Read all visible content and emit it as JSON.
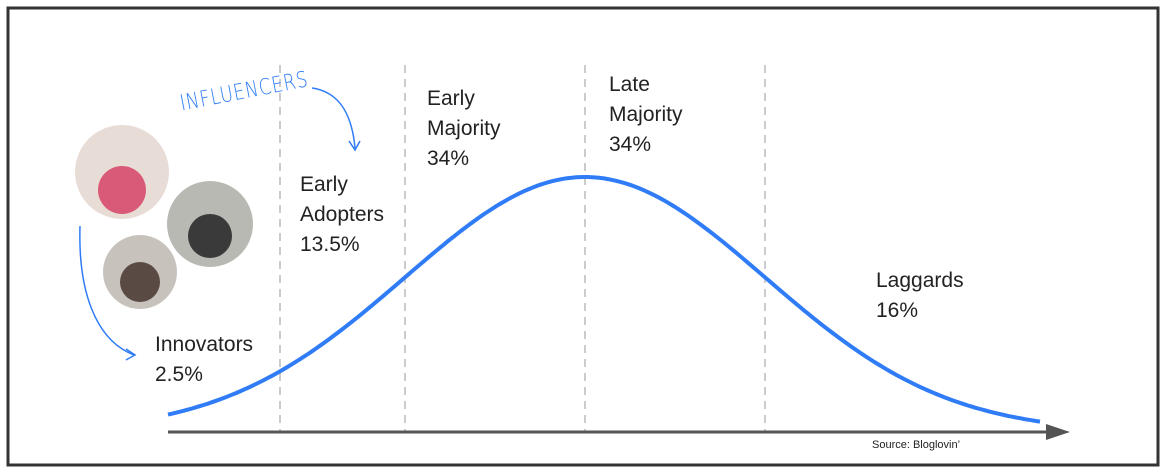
{
  "annotation": "INFLUENCERS",
  "segments": [
    {
      "name": "Innovators",
      "share": "2.5%"
    },
    {
      "name": "Early Adopters",
      "share": "13.5%"
    },
    {
      "name": "Early Majority",
      "share": "34%"
    },
    {
      "name": "Late Majority",
      "share": "34%"
    },
    {
      "name": "Laggards",
      "share": "16%"
    }
  ],
  "source": "Source: Bloglovin’"
}
